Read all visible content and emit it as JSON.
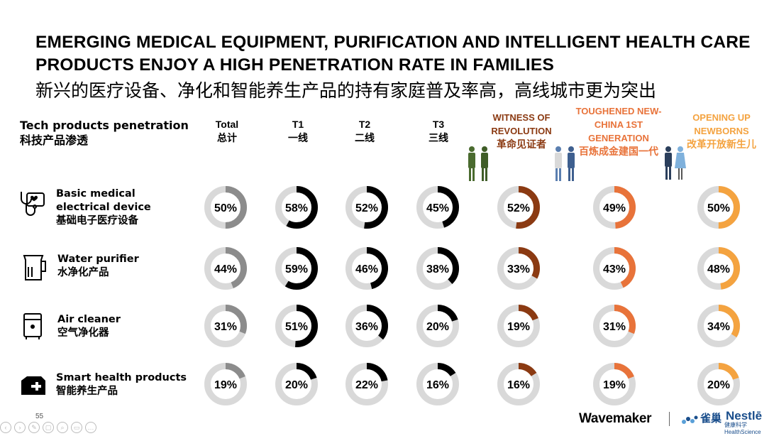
{
  "title": "EMERGING MEDICAL EQUIPMENT, PURIFICATION AND INTELLIGENT HEALTH CARE PRODUCTS ENJOY A HIGH PENETRATION RATE IN FAMILIES",
  "subtitle": "新兴的医疗设备、净化和智能养生产品的持有家庭普及率高，高线城市更为突出",
  "row_header": {
    "en": "Tech products penetration",
    "zh": "科技产品渗透"
  },
  "page_number": "55",
  "brands": {
    "agency": "Wavemaker",
    "client_zh": "雀巢",
    "client_en": "Nestlē",
    "client_sub": "健康科学 HealthScience"
  },
  "colors": {
    "track": "#d9d9d9",
    "total": "#8c8c8c",
    "tier": "#000000",
    "revolution": "#8b3a12",
    "new_china": "#e8733a",
    "newborns": "#f4a340",
    "revolution_text": "#8b3a12",
    "new_china_text": "#e8733a",
    "newborns_text": "#f4a340"
  },
  "columns": [
    {
      "en": "Total",
      "zh": "总计"
    },
    {
      "en": "T1",
      "zh": "一线"
    },
    {
      "en": "T2",
      "zh": "二线"
    },
    {
      "en": "T3",
      "zh": "三线"
    },
    {
      "en": "WITNESS OF REVOLUTION",
      "zh": "革命见证者"
    },
    {
      "en": "TOUGHENED NEW-CHINA 1ST GENERATION",
      "zh": "百炼成金建国一代"
    },
    {
      "en": "OPENING UP NEWBORNS",
      "zh": "改革开放新生儿"
    }
  ],
  "rows": [
    {
      "en": "Basic medical electrical device",
      "zh": "基础电子医疗设备",
      "icon": "stethoscope-icon"
    },
    {
      "en": "Water purifier",
      "zh": "水净化产品",
      "icon": "water-jug-icon"
    },
    {
      "en": "Air cleaner",
      "zh": "空气净化器",
      "icon": "air-purifier-icon"
    },
    {
      "en": "Smart health products",
      "zh": "智能养生产品",
      "icon": "medical-kit-icon"
    }
  ],
  "chart_data": {
    "type": "donut-grid",
    "title": "EMERGING MEDICAL EQUIPMENT, PURIFICATION AND INTELLIGENT HEALTH CARE PRODUCTS ENJOY A HIGH PENETRATION RATE IN FAMILIES",
    "categories": [
      "Total",
      "T1",
      "T2",
      "T3",
      "WITNESS OF REVOLUTION",
      "TOUGHENED NEW-CHINA 1ST GENERATION",
      "OPENING UP NEWBORNS"
    ],
    "series": [
      {
        "name": "Basic medical electrical device",
        "values": [
          50,
          58,
          52,
          45,
          52,
          49,
          50
        ]
      },
      {
        "name": "Water purifier",
        "values": [
          44,
          59,
          46,
          38,
          33,
          43,
          48
        ]
      },
      {
        "name": "Air cleaner",
        "values": [
          31,
          51,
          36,
          20,
          19,
          31,
          34
        ]
      },
      {
        "name": "Smart health products",
        "values": [
          19,
          20,
          22,
          16,
          16,
          19,
          20
        ]
      }
    ],
    "unit": "%"
  }
}
